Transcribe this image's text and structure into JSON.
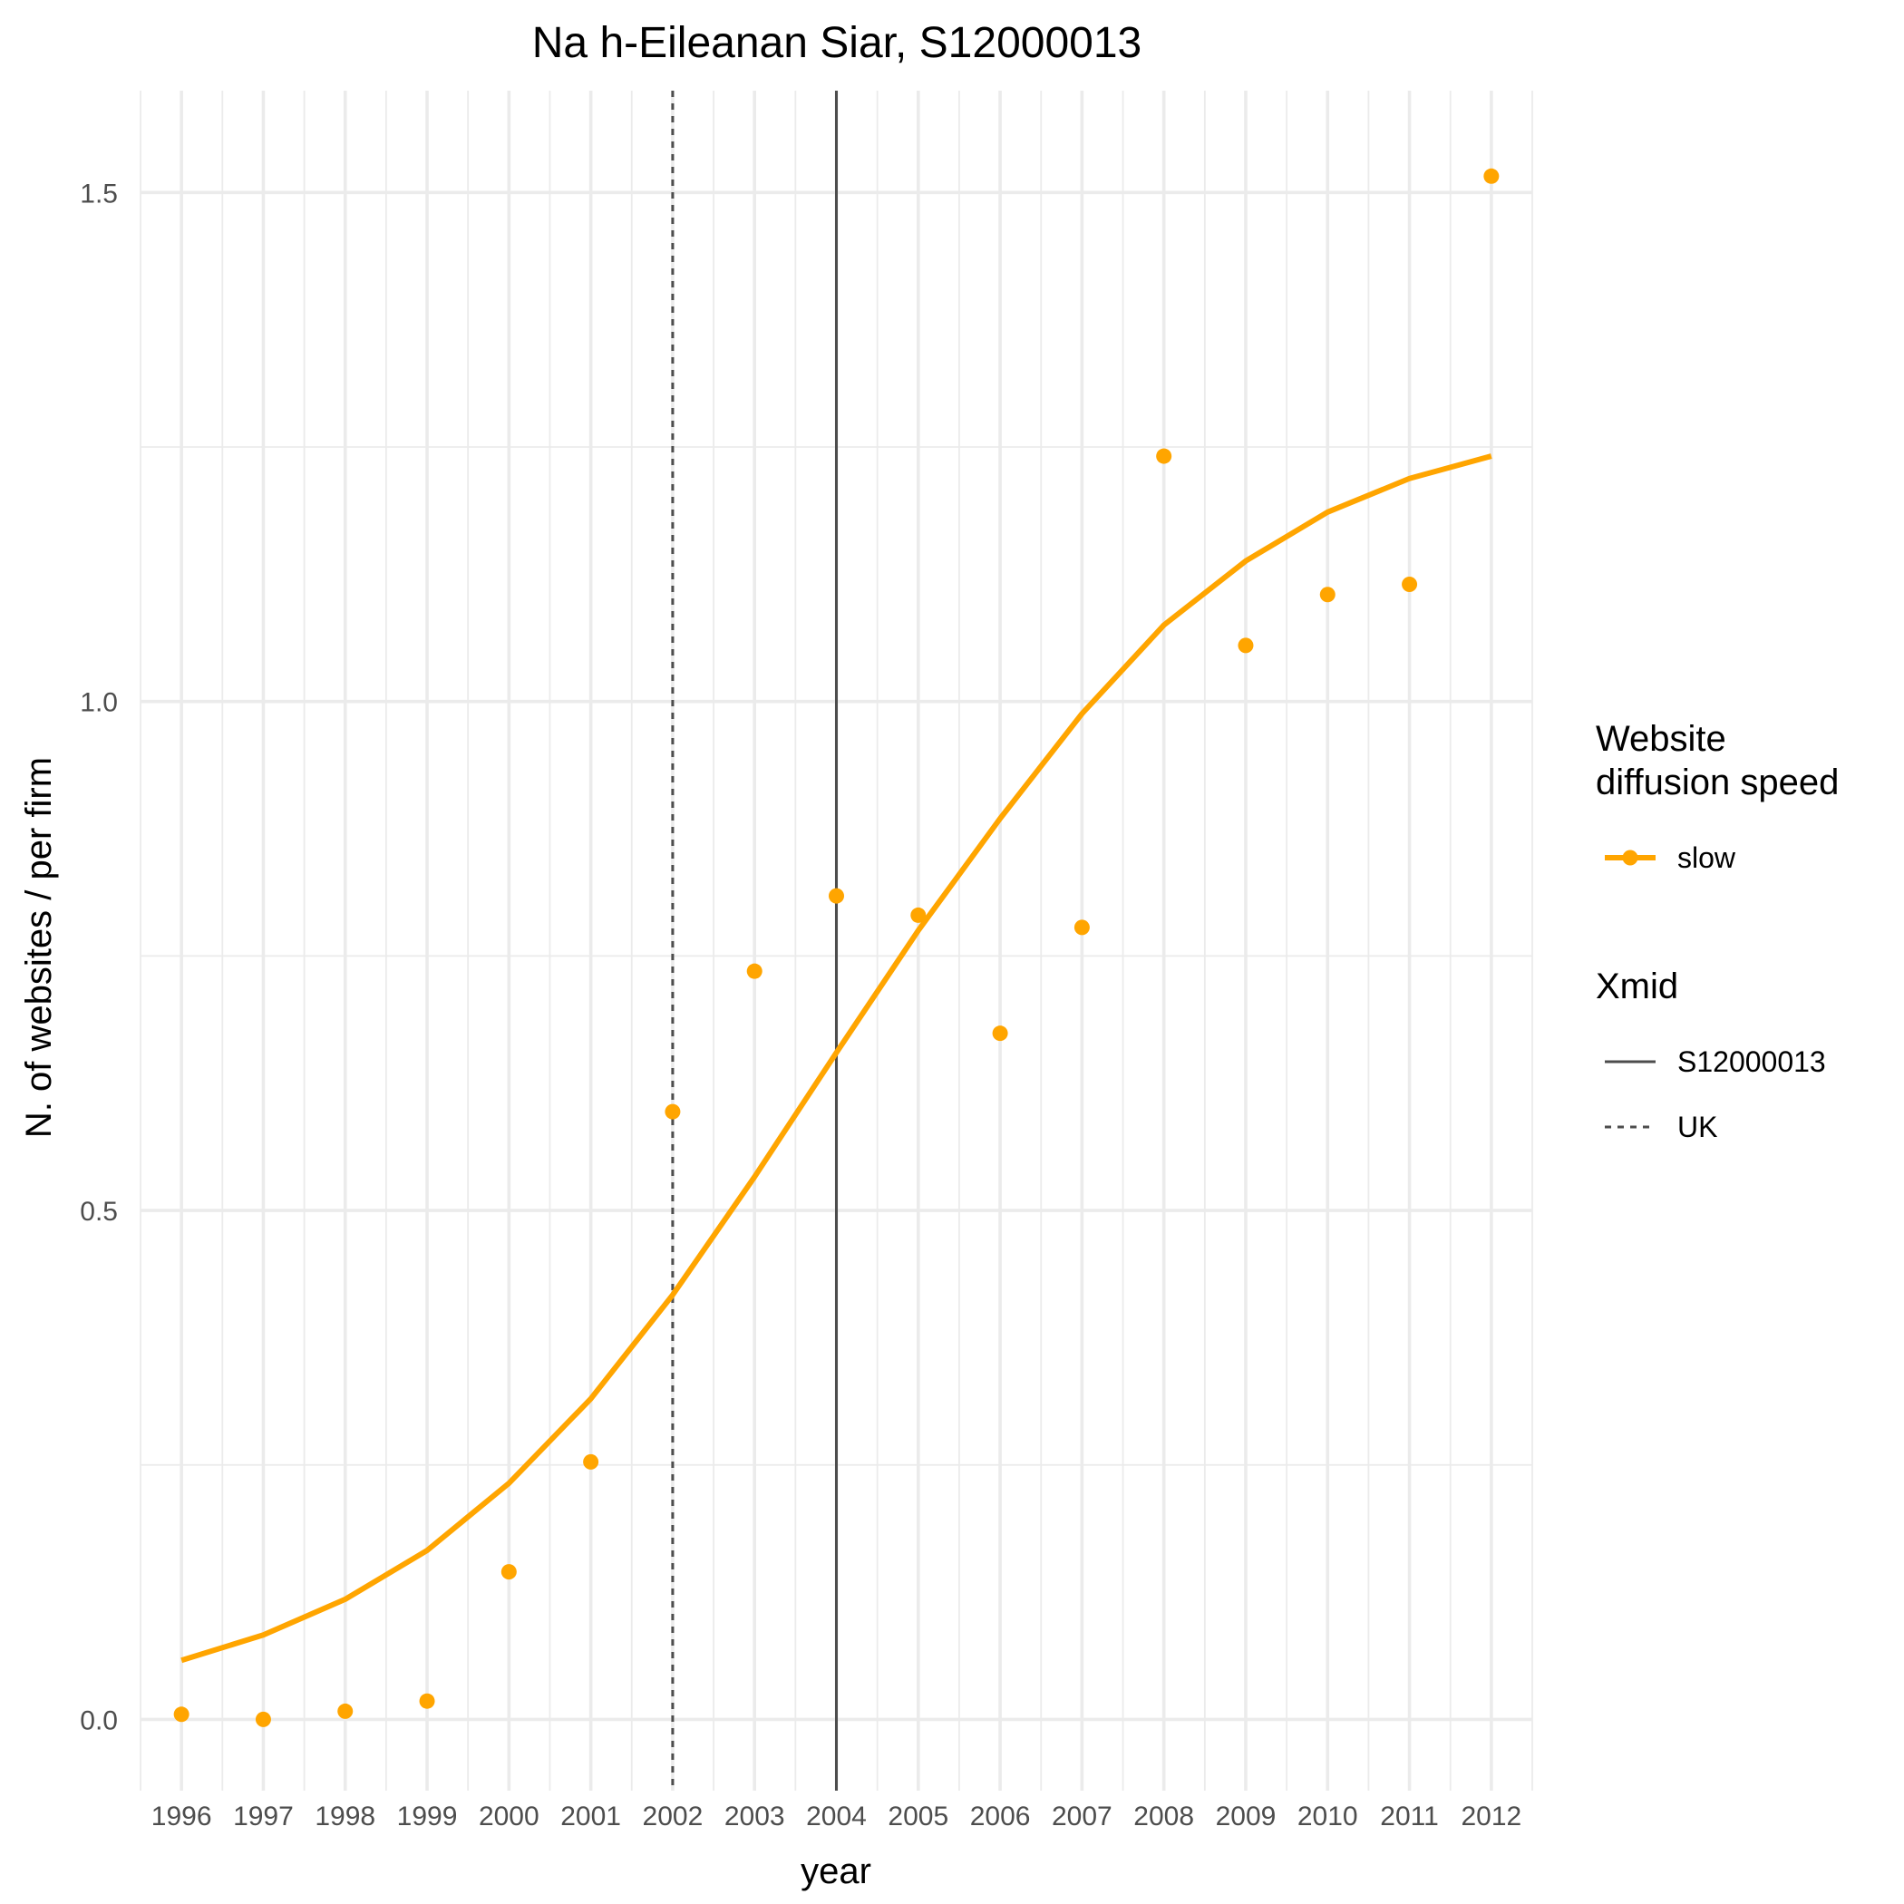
{
  "chart_data": {
    "type": "line",
    "title": "Na h-Eileanan Siar, S12000013",
    "xlabel": "year",
    "ylabel": "N. of websites / per firm",
    "x": [
      1996,
      1997,
      1998,
      1999,
      2000,
      2001,
      2002,
      2003,
      2004,
      2005,
      2006,
      2007,
      2008,
      2009,
      2010,
      2011,
      2012
    ],
    "xlim": [
      1995.5,
      2012.5
    ],
    "ylim": [
      -0.07,
      1.6
    ],
    "y_ticks": [
      0.0,
      0.5,
      1.0,
      1.5
    ],
    "y_tick_labels": [
      "0.0",
      "0.5",
      "1.0",
      "1.5"
    ],
    "grid": true,
    "series": [
      {
        "name": "slow",
        "kind": "points",
        "color": "#FFA500",
        "values": [
          0.005,
          0.0,
          0.008,
          0.018,
          0.145,
          0.253,
          0.597,
          0.735,
          0.809,
          0.79,
          0.674,
          0.778,
          1.241,
          1.055,
          1.105,
          1.115,
          1.516
        ]
      },
      {
        "name": "slow",
        "kind": "fitted-line",
        "color": "#FFA500",
        "values": [
          0.058,
          0.083,
          0.118,
          0.166,
          0.232,
          0.315,
          0.417,
          0.533,
          0.655,
          0.775,
          0.885,
          0.988,
          1.075,
          1.138,
          1.186,
          1.219,
          1.241
        ]
      }
    ],
    "vlines": [
      {
        "name": "S12000013",
        "x": 2004,
        "style": "solid",
        "color": "#4d4d4d"
      },
      {
        "name": "UK",
        "x": 2002,
        "style": "dotted",
        "color": "#4d4d4d"
      }
    ],
    "legend": {
      "position": "right",
      "groups": [
        {
          "title_lines": [
            "Website",
            "diffusion speed"
          ],
          "items": [
            {
              "label": "slow",
              "kind": "line-point",
              "color": "#FFA500"
            }
          ]
        },
        {
          "title_lines": [
            "Xmid"
          ],
          "items": [
            {
              "label": "S12000013",
              "kind": "solid-line",
              "color": "#4d4d4d"
            },
            {
              "label": "UK",
              "kind": "dotted-line",
              "color": "#4d4d4d"
            }
          ]
        }
      ]
    }
  }
}
